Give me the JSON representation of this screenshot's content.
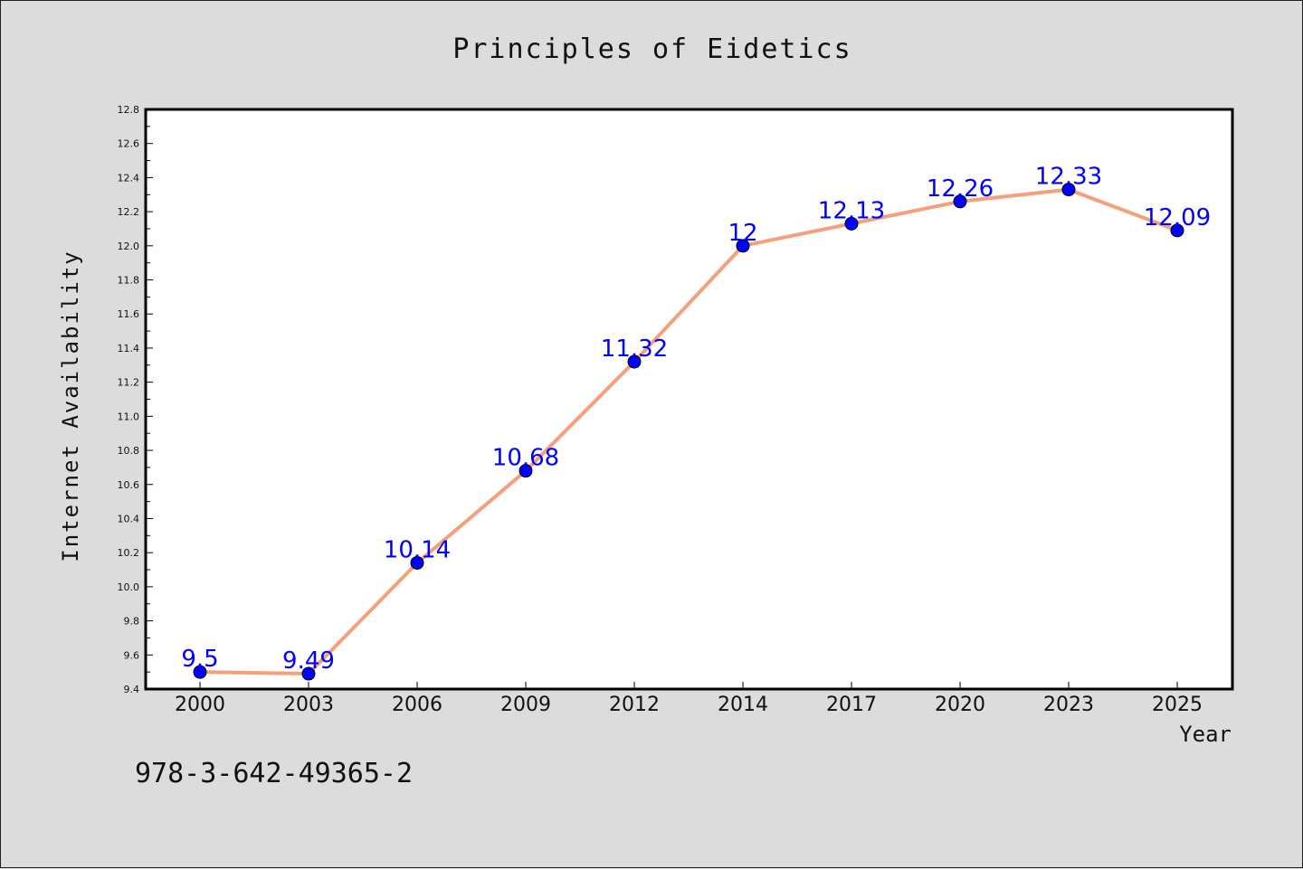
{
  "chart_data": {
    "type": "line",
    "title": "Principles of Eidetics",
    "xlabel": "Year",
    "ylabel": "Internet Availability",
    "categories": [
      "2000",
      "2003",
      "2006",
      "2009",
      "2012",
      "2014",
      "2017",
      "2020",
      "2023",
      "2025"
    ],
    "series": [
      {
        "values": [
          9.5,
          9.49,
          10.14,
          10.68,
          11.32,
          12,
          12.13,
          12.26,
          12.33,
          12.09
        ],
        "data_labels": [
          "9.5",
          "9.49",
          "10.14",
          "10.68",
          "11.32",
          "12",
          "12.13",
          "12.26",
          "12.33",
          "12.09"
        ],
        "line_color": "#f4a07a",
        "marker_color": "#0000ff"
      }
    ],
    "ylim": [
      9.4,
      12.8
    ],
    "yticks": [
      "9.4",
      "9.6",
      "9.8",
      "10.0",
      "10.2",
      "10.4",
      "10.6",
      "10.8",
      "11.0",
      "11.2",
      "11.4",
      "11.6",
      "11.8",
      "12.0",
      "12.2",
      "12.4",
      "12.6",
      "12.8"
    ],
    "grid": false,
    "legend": "none"
  },
  "annotation": "978-3-642-49365-2",
  "colors": {
    "background": "#dcdcdc",
    "plot_background": "#ffffff",
    "label_color": "#0000ff"
  }
}
